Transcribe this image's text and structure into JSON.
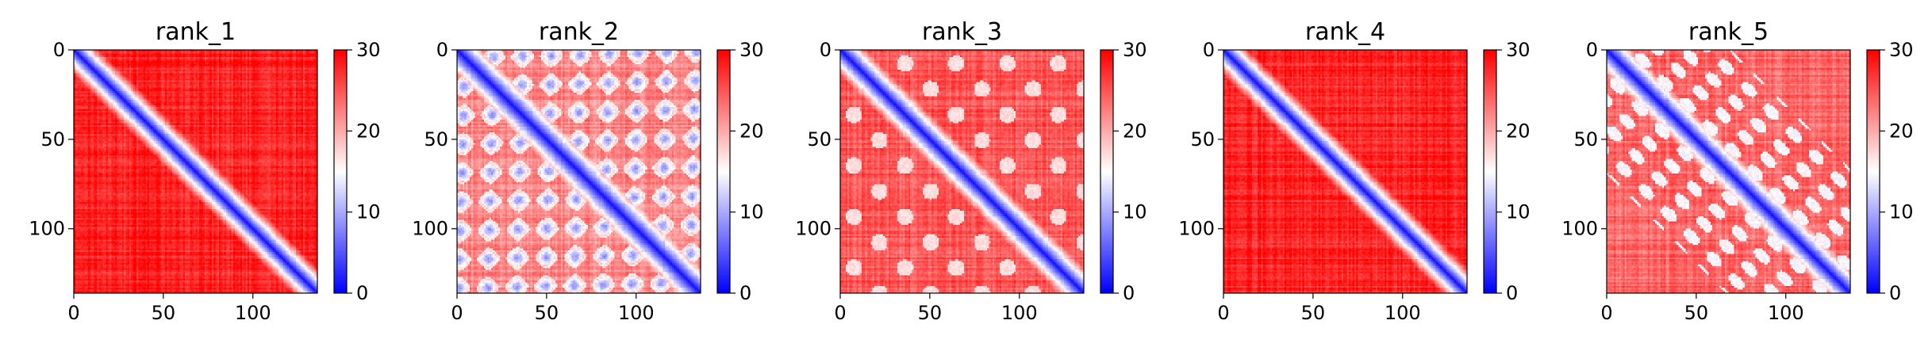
{
  "figure": {
    "colormap": {
      "name": "bwr",
      "low_color": "#0000ff",
      "mid_color": "#ffffff",
      "high_color": "#ff0000",
      "range": [
        0,
        30
      ],
      "ticks": [
        0,
        10,
        20,
        30
      ]
    }
  },
  "chart_data": [
    {
      "type": "heatmap",
      "title": "rank_1",
      "size": 136,
      "xlim": [
        0,
        136
      ],
      "ylim": [
        0,
        136
      ],
      "xticks": [
        0,
        50,
        100
      ],
      "yticks": [
        0,
        50,
        100
      ],
      "value_range": [
        0,
        30
      ],
      "colorbar_ticks": [
        0,
        10,
        20,
        30
      ],
      "style": {
        "background": 28,
        "diag_low": 1,
        "diag_width": 6,
        "offdiag_features": []
      }
    },
    {
      "type": "heatmap",
      "title": "rank_2",
      "size": 136,
      "xlim": [
        0,
        136
      ],
      "ylim": [
        0,
        136
      ],
      "xticks": [
        0,
        50,
        100
      ],
      "yticks": [
        0,
        50,
        100
      ],
      "value_range": [
        0,
        30
      ],
      "colorbar_ticks": [
        0,
        10,
        20,
        30
      ],
      "style": {
        "background": 22,
        "diag_low": 1,
        "diag_width": 6,
        "offdiag_features": [
          "blue-patches"
        ]
      }
    },
    {
      "type": "heatmap",
      "title": "rank_3",
      "size": 136,
      "xlim": [
        0,
        136
      ],
      "ylim": [
        0,
        136
      ],
      "xticks": [
        0,
        50,
        100
      ],
      "yticks": [
        0,
        50,
        100
      ],
      "value_range": [
        0,
        30
      ],
      "colorbar_ticks": [
        0,
        10,
        20,
        30
      ],
      "style": {
        "background": 25,
        "diag_low": 1,
        "diag_width": 6,
        "offdiag_features": [
          "light-patches"
        ]
      }
    },
    {
      "type": "heatmap",
      "title": "rank_4",
      "size": 136,
      "xlim": [
        0,
        136
      ],
      "ylim": [
        0,
        136
      ],
      "xticks": [
        0,
        50,
        100
      ],
      "yticks": [
        0,
        50,
        100
      ],
      "value_range": [
        0,
        30
      ],
      "colorbar_ticks": [
        0,
        10,
        20,
        30
      ],
      "style": {
        "background": 28,
        "diag_low": 1,
        "diag_width": 6,
        "offdiag_features": []
      }
    },
    {
      "type": "heatmap",
      "title": "rank_5",
      "size": 136,
      "xlim": [
        0,
        136
      ],
      "ylim": [
        0,
        136
      ],
      "xticks": [
        0,
        50,
        100
      ],
      "yticks": [
        0,
        50,
        100
      ],
      "value_range": [
        0,
        30
      ],
      "colorbar_ticks": [
        0,
        10,
        20,
        30
      ],
      "style": {
        "background": 24,
        "diag_low": 1,
        "diag_width": 6,
        "offdiag_features": [
          "white-rings"
        ]
      }
    }
  ]
}
